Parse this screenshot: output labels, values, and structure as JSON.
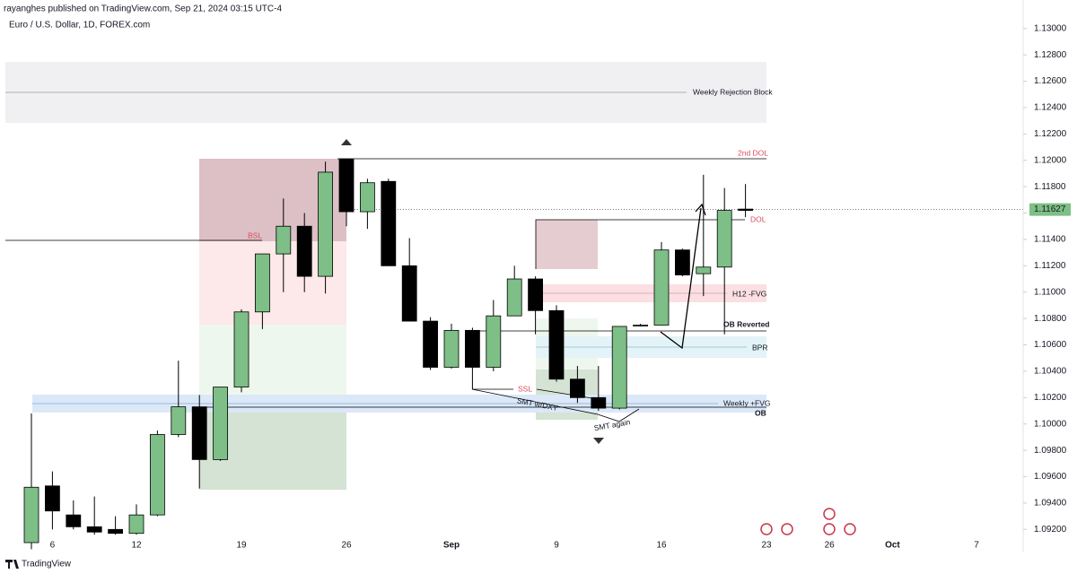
{
  "header": {
    "publisher": "rayanghes published on TradingView.com, Sep 21, 2024 03:15 UTC-4",
    "symbol": "Euro / U.S. Dollar, 1D, FOREX.com"
  },
  "footer": {
    "brand": "TradingView"
  },
  "chart_data": {
    "type": "candlestick",
    "categories": [
      null,
      "6",
      null,
      null,
      null,
      "12",
      null,
      null,
      null,
      null,
      "19",
      null,
      null,
      null,
      null,
      "26",
      null,
      null,
      null,
      null,
      "Sep",
      null,
      null,
      null,
      null,
      "9",
      null,
      null,
      null,
      null,
      "16",
      null,
      null,
      null,
      null,
      "23",
      null,
      null,
      "26",
      null,
      null,
      "Oct",
      null,
      null,
      null,
      "7"
    ],
    "series": [
      {
        "name": "EURUSD",
        "up_color": "#7dbf86",
        "down_color": "#000000",
        "open": [
          1.091,
          1.0953,
          1.0931,
          1.0922,
          1.092,
          1.0917,
          1.0931,
          1.0992,
          1.1013,
          1.0973,
          1.1028,
          1.1085,
          1.1129,
          1.115,
          1.1112,
          1.1201,
          1.1161,
          1.1184,
          1.112,
          1.1078,
          1.1043,
          1.1071,
          1.1043,
          1.1082,
          1.111,
          1.1086,
          1.1034,
          1.102,
          1.1012,
          1.1075,
          1.1075,
          1.1132,
          1.1114,
          1.1119,
          1.1163,
          null,
          null,
          null,
          null,
          null,
          null,
          null,
          null,
          null,
          null,
          null
        ],
        "high": [
          1.1008,
          1.0964,
          1.0942,
          1.0945,
          1.093,
          1.0939,
          1.0995,
          1.1048,
          1.1022,
          1.1028,
          1.1087,
          1.1129,
          1.1171,
          1.116,
          1.1199,
          1.1201,
          1.1186,
          1.1186,
          1.1141,
          1.1081,
          1.1076,
          1.1073,
          1.1094,
          1.112,
          1.1112,
          1.109,
          1.1044,
          1.1044,
          1.1074,
          1.1076,
          1.1138,
          1.1133,
          1.1189,
          1.1179,
          1.1182,
          null,
          null,
          null,
          null,
          null,
          null,
          null,
          null,
          null,
          null,
          null
        ],
        "low": [
          1.0905,
          1.092,
          1.092,
          1.0916,
          1.0916,
          1.0916,
          1.093,
          1.099,
          1.0951,
          1.0972,
          1.1024,
          1.1072,
          1.11,
          1.11,
          1.1099,
          1.115,
          1.1148,
          1.112,
          1.1078,
          1.1041,
          1.1042,
          1.1026,
          1.104,
          1.1082,
          1.1068,
          1.1032,
          1.1016,
          1.101,
          1.1011,
          1.1074,
          1.1075,
          1.1112,
          1.1097,
          1.1068,
          1.1157,
          null,
          null,
          null,
          null,
          null,
          null,
          null,
          null,
          null,
          null,
          null
        ],
        "close": [
          1.0952,
          1.0934,
          1.0922,
          1.0918,
          1.0917,
          1.0931,
          1.0992,
          1.1013,
          1.0973,
          1.1028,
          1.1085,
          1.1129,
          1.115,
          1.1112,
          1.1191,
          1.1161,
          1.1183,
          1.112,
          1.1078,
          1.1043,
          1.1071,
          1.1043,
          1.1082,
          1.111,
          1.1086,
          1.1034,
          1.102,
          1.1012,
          1.1074,
          1.1075,
          1.1132,
          1.1113,
          1.1119,
          1.1162,
          1.1162,
          null,
          null,
          null,
          null,
          null,
          null,
          null,
          null,
          null,
          null,
          null
        ]
      }
    ],
    "ylim": [
      1.091,
      1.1308
    ],
    "yticks": [
      {
        "value": 1.092,
        "label": "1.09200"
      },
      {
        "value": 1.094,
        "label": "1.09400"
      },
      {
        "value": 1.096,
        "label": "1.09600"
      },
      {
        "value": 1.098,
        "label": "1.09800"
      },
      {
        "value": 1.1,
        "label": "1.10000"
      },
      {
        "value": 1.102,
        "label": "1.10200"
      },
      {
        "value": 1.104,
        "label": "1.10400"
      },
      {
        "value": 1.106,
        "label": "1.10600"
      },
      {
        "value": 1.108,
        "label": "1.10800"
      },
      {
        "value": 1.11,
        "label": "1.11000"
      },
      {
        "value": 1.112,
        "label": "1.11200"
      },
      {
        "value": 1.114,
        "label": "1.11400"
      },
      {
        "value": 1.116,
        "label": "1.11600"
      },
      {
        "value": 1.118,
        "label": "1.11800"
      },
      {
        "value": 1.12,
        "label": "1.12000"
      },
      {
        "value": 1.122,
        "label": "1.12200"
      },
      {
        "value": 1.124,
        "label": "1.12400"
      },
      {
        "value": 1.126,
        "label": "1.12600"
      },
      {
        "value": 1.128,
        "label": "1.12800"
      },
      {
        "value": 1.13,
        "label": "1.13000"
      }
    ],
    "grid": false,
    "last_price": 1.11627,
    "annotations": {
      "weekly_rejection": "Weekly Rejection Block",
      "second_dol": "2nd DOL",
      "dol": "DOL",
      "bsl": "BSL",
      "h12_fvg": "H12 -FVG",
      "ob_reverted": "OB Reverted",
      "bpr": "BPR",
      "ssl": "SSL",
      "weekly_fvg": "Weekly +FVG",
      "ob": "OB",
      "smt_dxy": "SMT w/DXY",
      "smt_again": "SMT again"
    }
  }
}
